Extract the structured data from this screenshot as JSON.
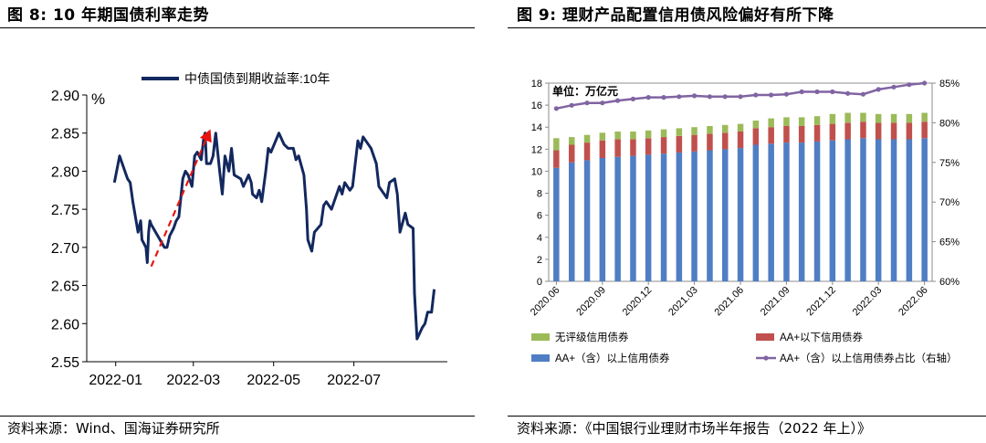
{
  "left": {
    "title": "图 8: 10 年期国债利率走势",
    "source": "资料来源：Wind、国海证券研究所"
  },
  "right": {
    "title": "图 9: 理财产品配置信用债风险偏好有所下降",
    "source": "资料来源：《中国银行业理财市场半年报告（2022 年上）》"
  },
  "chart_data": [
    {
      "type": "line",
      "title": "",
      "ylabel": "%",
      "xlabel": "",
      "ylim": [
        2.55,
        2.9
      ],
      "yticks": [
        "2.90",
        "2.85",
        "2.80",
        "2.75",
        "2.70",
        "2.65",
        "2.60",
        "2.55"
      ],
      "xticks": [
        "2022-01",
        "2022-03",
        "2022-05",
        "2022-07"
      ],
      "legend_position": "top",
      "series_color": "#13285e",
      "annotation_color": "#e8150f",
      "series": [
        {
          "name": "中债国债到期收益率:10年",
          "x": [
            "2021-12-31",
            "2022-01-04",
            "2022-01-06",
            "2022-01-10",
            "2022-01-12",
            "2022-01-14",
            "2022-01-18",
            "2022-01-20",
            "2022-01-21",
            "2022-01-24",
            "2022-01-25",
            "2022-01-26",
            "2022-01-27",
            "2022-01-28",
            "2022-02-07",
            "2022-02-09",
            "2022-02-11",
            "2022-02-14",
            "2022-02-16",
            "2022-02-18",
            "2022-02-21",
            "2022-02-23",
            "2022-02-25",
            "2022-02-28",
            "2022-03-02",
            "2022-03-04",
            "2022-03-07",
            "2022-03-09",
            "2022-03-10",
            "2022-03-11",
            "2022-03-14",
            "2022-03-16",
            "2022-03-18",
            "2022-03-21",
            "2022-03-23",
            "2022-03-25",
            "2022-03-28",
            "2022-03-30",
            "2022-04-01",
            "2022-04-06",
            "2022-04-08",
            "2022-04-12",
            "2022-04-14",
            "2022-04-15",
            "2022-04-18",
            "2022-04-20",
            "2022-04-22",
            "2022-04-25",
            "2022-04-27",
            "2022-04-29",
            "2022-05-05",
            "2022-05-09",
            "2022-05-12",
            "2022-05-16",
            "2022-05-18",
            "2022-05-20",
            "2022-05-24",
            "2022-05-26",
            "2022-05-27",
            "2022-05-30",
            "2022-06-01",
            "2022-06-06",
            "2022-06-08",
            "2022-06-10",
            "2022-06-14",
            "2022-06-16",
            "2022-06-20",
            "2022-06-22",
            "2022-06-24",
            "2022-06-28",
            "2022-06-30",
            "2022-07-04",
            "2022-07-06",
            "2022-07-08",
            "2022-07-12",
            "2022-07-14",
            "2022-07-18",
            "2022-07-20",
            "2022-07-22",
            "2022-07-26",
            "2022-07-28",
            "2022-08-01",
            "2022-08-03",
            "2022-08-05",
            "2022-08-09",
            "2022-08-11",
            "2022-08-15",
            "2022-08-16",
            "2022-08-18",
            "2022-08-22",
            "2022-08-24",
            "2022-08-26",
            "2022-08-29",
            "2022-08-31"
          ],
          "y": [
            2.785,
            2.82,
            2.81,
            2.79,
            2.785,
            2.76,
            2.72,
            2.735,
            2.71,
            2.7,
            2.68,
            2.72,
            2.735,
            2.73,
            2.7,
            2.7,
            2.715,
            2.725,
            2.735,
            2.74,
            2.79,
            2.8,
            2.795,
            2.78,
            2.82,
            2.825,
            2.815,
            2.845,
            2.85,
            2.81,
            2.81,
            2.82,
            2.85,
            2.8,
            2.77,
            2.82,
            2.8,
            2.83,
            2.795,
            2.79,
            2.78,
            2.795,
            2.785,
            2.77,
            2.765,
            2.775,
            2.76,
            2.8,
            2.83,
            2.825,
            2.85,
            2.835,
            2.83,
            2.83,
            2.815,
            2.82,
            2.795,
            2.75,
            2.71,
            2.695,
            2.72,
            2.73,
            2.755,
            2.76,
            2.75,
            2.76,
            2.78,
            2.77,
            2.785,
            2.775,
            2.78,
            2.84,
            2.83,
            2.845,
            2.835,
            2.83,
            2.81,
            2.78,
            2.775,
            2.765,
            2.785,
            2.79,
            2.77,
            2.72,
            2.745,
            2.73,
            2.725,
            2.64,
            2.58,
            2.595,
            2.6,
            2.615,
            2.615,
            2.645
          ]
        }
      ],
      "annotation": {
        "type": "dashed-arrow",
        "from": [
          "2022-01-28",
          2.675
        ],
        "to": [
          "2022-03-14",
          2.855
        ]
      }
    },
    {
      "type": "bar+line",
      "title": "",
      "unit_label": "单位：万亿元",
      "ylim": [
        0,
        18
      ],
      "yticks": [
        "18",
        "16",
        "14",
        "12",
        "10",
        "8",
        "6",
        "4",
        "2",
        "0"
      ],
      "y2lim": [
        60,
        85
      ],
      "y2ticks": [
        "85%",
        "80%",
        "75%",
        "70%",
        "65%",
        "60%"
      ],
      "categories": [
        "2020.06",
        "2020.07",
        "2020.08",
        "2020.09",
        "2020.10",
        "2020.11",
        "2020.12",
        "2021.01",
        "2021.02",
        "2021.03",
        "2021.04",
        "2021.05",
        "2021.06",
        "2021.07",
        "2021.08",
        "2021.09",
        "2021.10",
        "2021.11",
        "2021.12",
        "2022.01",
        "2022.02",
        "2022.03",
        "2022.04",
        "2022.05",
        "2022.06"
      ],
      "xtick_labels": [
        "2020.06",
        "2020.09",
        "2020.12",
        "2021.03",
        "2021.06",
        "2021.09",
        "2021.12",
        "2022.03",
        "2022.06"
      ],
      "legend_position": "bottom",
      "series": [
        {
          "name": "AA+（含）以上信用债券",
          "color": "#4f7ec4",
          "axis": "left",
          "values": [
            10.3,
            10.8,
            11.0,
            11.2,
            11.3,
            11.4,
            11.5,
            11.6,
            11.7,
            11.8,
            11.9,
            12.0,
            12.1,
            12.4,
            12.5,
            12.6,
            12.6,
            12.7,
            12.8,
            12.9,
            13.0,
            12.9,
            12.9,
            12.9,
            13.0
          ]
        },
        {
          "name": "AA+以下信用债券",
          "color": "#c0504d",
          "axis": "left",
          "values": [
            1.6,
            1.6,
            1.6,
            1.6,
            1.6,
            1.5,
            1.5,
            1.5,
            1.5,
            1.5,
            1.5,
            1.5,
            1.5,
            1.5,
            1.5,
            1.5,
            1.5,
            1.5,
            1.5,
            1.5,
            1.5,
            1.5,
            1.5,
            1.5,
            1.5
          ]
        },
        {
          "name": "无评级信用债券",
          "color": "#9bbb59",
          "axis": "left",
          "values": [
            1.1,
            0.7,
            0.7,
            0.7,
            0.7,
            0.7,
            0.7,
            0.7,
            0.7,
            0.7,
            0.7,
            0.7,
            0.7,
            0.7,
            0.8,
            0.8,
            0.8,
            0.8,
            0.9,
            0.9,
            0.8,
            0.8,
            0.8,
            0.8,
            0.8
          ]
        },
        {
          "name": "AA+（含）以上信用债券占比（右轴）",
          "color": "#8064a2",
          "axis": "right",
          "values": [
            81.8,
            82.2,
            82.5,
            82.5,
            82.8,
            83.0,
            83.2,
            83.2,
            83.3,
            83.4,
            83.3,
            83.3,
            83.3,
            83.5,
            83.5,
            83.6,
            83.9,
            83.9,
            83.9,
            83.7,
            83.6,
            84.2,
            84.5,
            84.8,
            85.0
          ]
        }
      ]
    }
  ]
}
